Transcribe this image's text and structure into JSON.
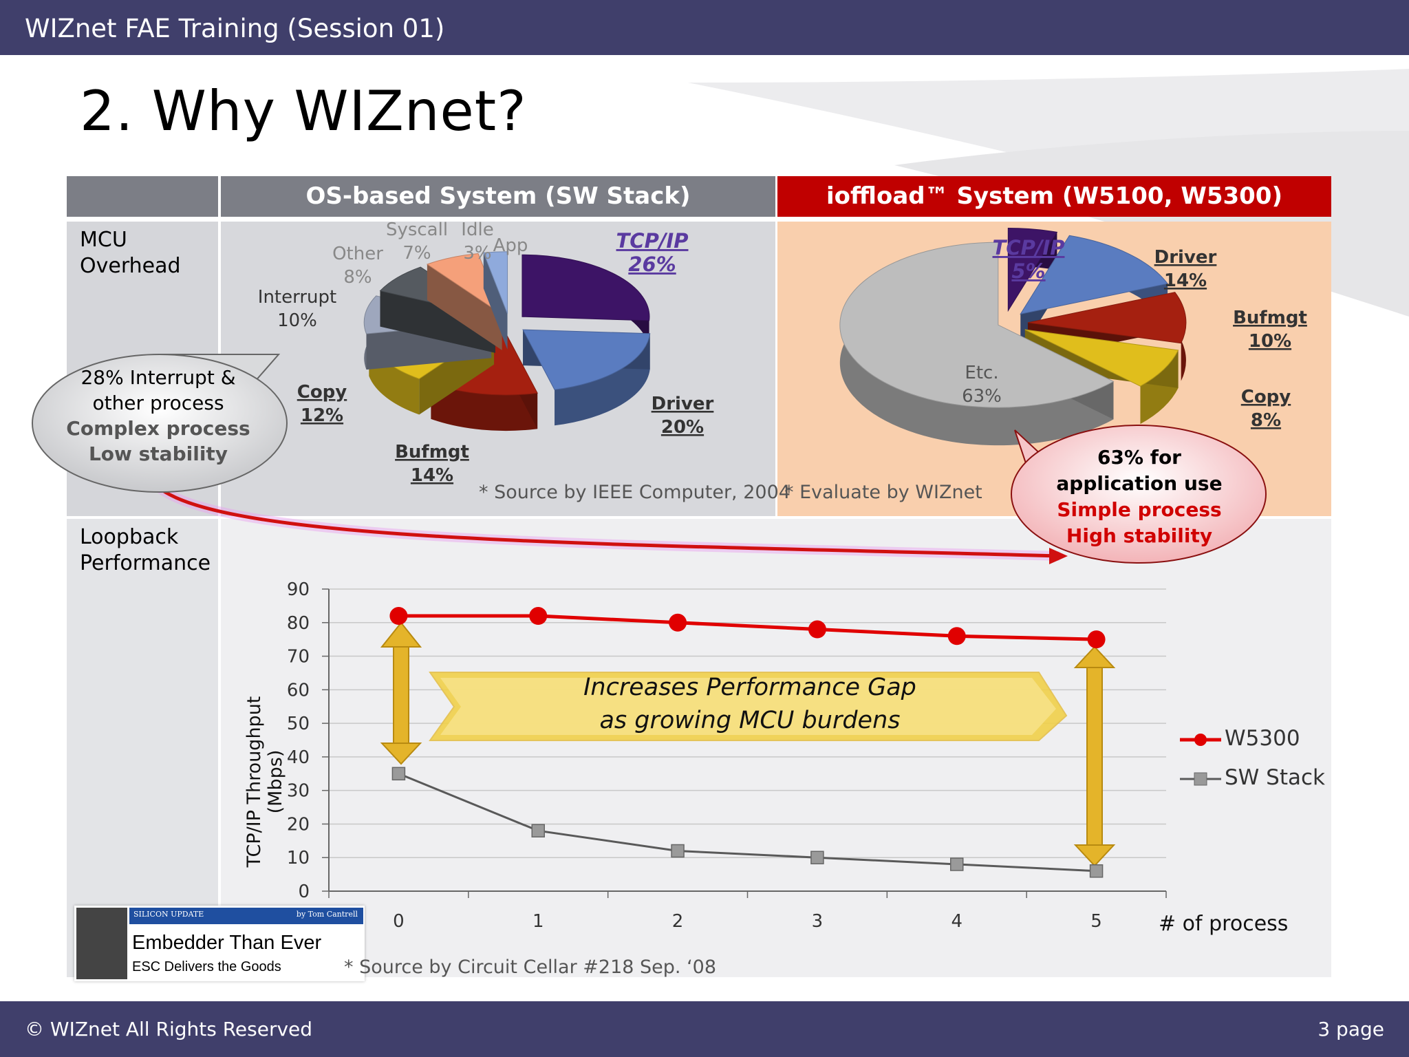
{
  "header": {
    "title": "WIZnet FAE Training (Session 01)"
  },
  "footer": {
    "copyright": "© WIZnet All Rights Reserved",
    "page": "3 page"
  },
  "slide": {
    "title": "2. Why WIZnet?"
  },
  "table": {
    "col_os": "OS-based System (SW Stack)",
    "col_io": "ioffload™ System (W5100, W5300)",
    "row1_label": "MCU\nOverhead",
    "row2_label": "Loopback\nPerformance"
  },
  "os_pie": {
    "source": "* Source by IEEE Computer, 2004",
    "slices": [
      {
        "label": "TCP/IP",
        "pct": "26%",
        "value": 26,
        "color": "#3d1466"
      },
      {
        "label": "Driver",
        "pct": "20%",
        "value": 20,
        "color": "#5a7cc0"
      },
      {
        "label": "Bufmgt",
        "pct": "14%",
        "value": 14,
        "color": "#a52010"
      },
      {
        "label": "Copy",
        "pct": "12%",
        "value": 12,
        "color": "#e0be1c"
      },
      {
        "label": "Interrupt",
        "pct": "10%",
        "value": 10,
        "color": "#9ea7bd"
      },
      {
        "label": "Other",
        "pct": "8%",
        "value": 8,
        "color": "#555a60"
      },
      {
        "label": "Syscall",
        "pct": "7%",
        "value": 7,
        "color": "#f5a07a"
      },
      {
        "label": "Idle",
        "pct": "3%",
        "value": 3,
        "color": "#8faadc"
      },
      {
        "label": "App",
        "pct": "",
        "value": 0,
        "color": "#7f7f7f"
      }
    ]
  },
  "io_pie": {
    "source": "* Evaluate by WIZnet",
    "slices": [
      {
        "label": "TCP/IP",
        "pct": "5%",
        "value": 5,
        "color": "#3d1466"
      },
      {
        "label": "Driver",
        "pct": "14%",
        "value": 14,
        "color": "#5a7cc0"
      },
      {
        "label": "Bufmgt",
        "pct": "10%",
        "value": 10,
        "color": "#a52010"
      },
      {
        "label": "Copy",
        "pct": "8%",
        "value": 8,
        "color": "#e0be1c"
      },
      {
        "label": "Etc.",
        "pct": "63%",
        "value": 63,
        "color": "#bdbdbd"
      }
    ]
  },
  "callouts": {
    "left_line1": "28% Interrupt &",
    "left_line2": "other process",
    "left_line3": "Complex process",
    "left_line4": "Low stability",
    "right_line1": "63% for",
    "right_line2": "application use",
    "right_line3": "Simple process",
    "right_line4": "High stability"
  },
  "banner": {
    "line1": "Increases Performance Gap",
    "line2": "as growing MCU burdens"
  },
  "chart_source": "* Source by Circuit Cellar #218 Sep. ‘08",
  "newsclip": {
    "tag": "SILICON UPDATE",
    "byline": "by Tom Cantrell",
    "headline": "Embedder Than Ever",
    "sub": "ESC Delivers the Goods"
  },
  "chart_data": {
    "type": "line",
    "x": [
      0,
      1,
      2,
      3,
      4,
      5
    ],
    "series": [
      {
        "name": "W5300",
        "values": [
          82,
          82,
          80,
          78,
          76,
          75
        ],
        "color": "#e00000"
      },
      {
        "name": "SW Stack",
        "values": [
          35,
          18,
          12,
          10,
          8,
          6
        ],
        "color": "#595959"
      }
    ],
    "xlabel": "# of process",
    "ylabel": "TCP/IP Throughput (Mbps)",
    "ylim": [
      0,
      90
    ],
    "yticks": [
      0,
      10,
      20,
      30,
      40,
      50,
      60,
      70,
      80,
      90
    ],
    "grid": true,
    "legend": "right"
  }
}
